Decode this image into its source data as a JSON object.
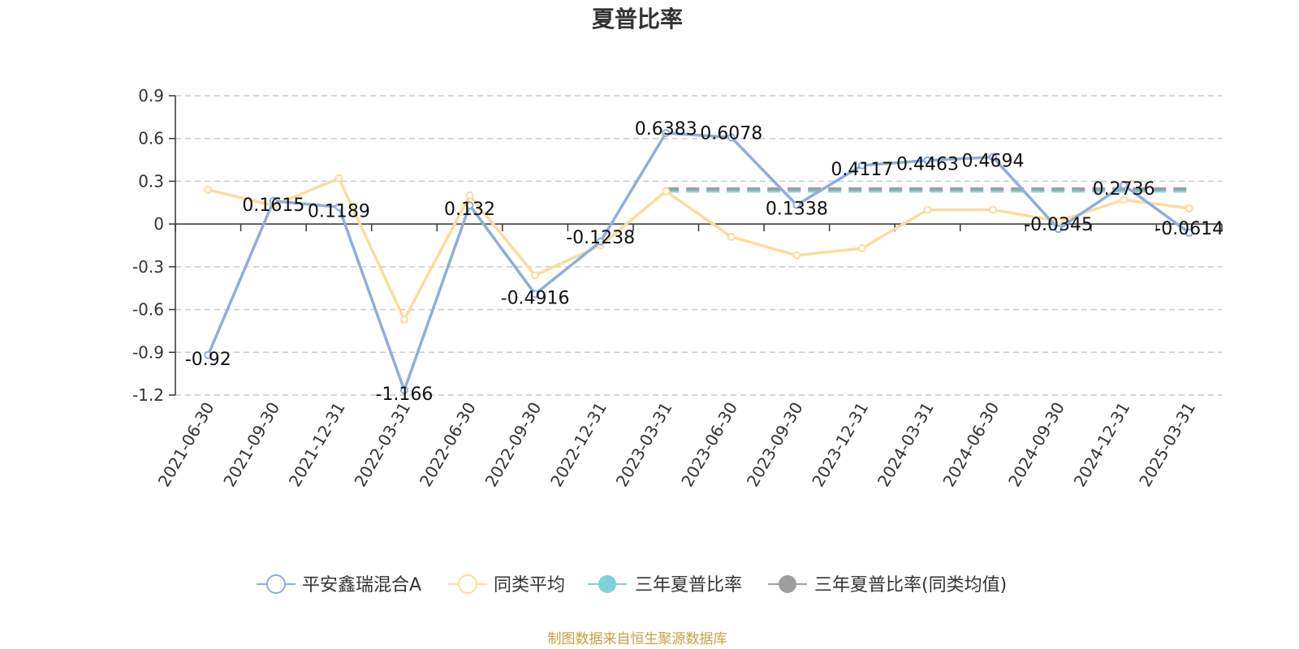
{
  "chart_data": {
    "type": "line",
    "title": "夏普比率",
    "x": [
      "2021-06-30",
      "2021-09-30",
      "2021-12-31",
      "2022-03-31",
      "2022-06-30",
      "2022-09-30",
      "2022-12-31",
      "2023-03-31",
      "2023-06-30",
      "2023-09-30",
      "2023-12-31",
      "2024-03-31",
      "2024-06-30",
      "2024-09-30",
      "2024-12-31",
      "2025-03-31"
    ],
    "ylim": [
      -1.2,
      0.9
    ],
    "yticks": [
      "0.9",
      "0.6",
      "0.3",
      "0",
      "-0.3",
      "-0.6",
      "-0.9",
      "-1.2"
    ],
    "grid": true,
    "legend_position": "bottom",
    "series": [
      {
        "name": "平安鑫瑞混合A",
        "color": "#8eaedb",
        "style": "line",
        "values": [
          -0.92,
          0.1615,
          0.1189,
          -1.166,
          0.132,
          -0.4916,
          -0.1238,
          0.6383,
          0.6078,
          0.1338,
          0.4117,
          0.4463,
          0.4694,
          -0.0345,
          0.2736,
          -0.0614
        ],
        "labels": [
          "-0.92",
          "0.1615",
          "0.1189",
          "-1.166",
          "0.132",
          "-0.4916",
          "-0.1238",
          "0.6383",
          "0.6078",
          "0.1338",
          "0.4117",
          "0.4463",
          "0.4694",
          "-0.0345",
          "0.2736",
          "-0.0614"
        ]
      },
      {
        "name": "同类平均",
        "color": "#fcdc9c",
        "style": "line",
        "values": [
          0.24,
          0.13,
          0.32,
          -0.67,
          0.2,
          -0.36,
          -0.15,
          0.23,
          -0.09,
          -0.22,
          -0.17,
          0.1,
          0.1,
          0.02,
          0.17,
          0.11
        ]
      },
      {
        "name": "三年夏普比率",
        "color": "#7fd3d6",
        "style": "dashed",
        "values": [
          null,
          null,
          null,
          null,
          null,
          null,
          null,
          0.232,
          0.232,
          0.232,
          0.232,
          0.232,
          0.232,
          0.232,
          0.232,
          0.232
        ]
      },
      {
        "name": "三年夏普比率(同类均值)",
        "color": "#9e9e9e",
        "style": "dashed",
        "values": [
          null,
          null,
          null,
          null,
          null,
          null,
          null,
          0.246,
          0.246,
          0.246,
          0.246,
          0.246,
          0.246,
          0.246,
          0.246,
          0.246
        ]
      }
    ]
  },
  "source": {
    "text": "制图数据来自恒生聚源数据库",
    "color": "#c8a040"
  }
}
